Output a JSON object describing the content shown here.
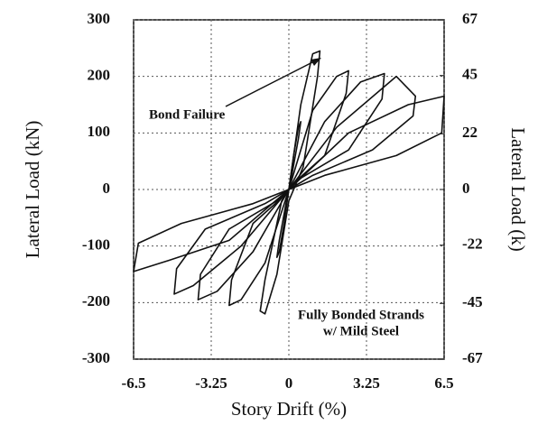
{
  "chart_data": {
    "type": "line",
    "xlabel": "Story Drift (%)",
    "ylabel": "Lateral Load (kN)",
    "y2label": "Lateral Load (k)",
    "annotations": [
      "Bond Failure",
      "Fully Bonded Strands",
      "w/ Mild Steel"
    ],
    "color": "#111111",
    "grid": true,
    "xlim": [
      -6.5,
      6.5
    ],
    "xticks": [
      -6.5,
      -3.25,
      0,
      3.25,
      6.5
    ],
    "ylim": [
      -300,
      300
    ],
    "yticks": [
      -300,
      -200,
      -100,
      0,
      100,
      200,
      300
    ],
    "y2lim": [
      -67,
      67
    ],
    "y2ticks": [
      67,
      45,
      22,
      0,
      -22,
      -45,
      -67
    ],
    "series": [
      {
        "x": [
          0,
          0.2,
          0.4,
          0.5,
          0.4,
          0.1,
          0,
          -0.2,
          -0.4,
          -0.5,
          -0.4,
          -0.1,
          0
        ],
        "values": [
          0,
          60,
          110,
          120,
          90,
          20,
          0,
          -60,
          -110,
          -120,
          -90,
          -20,
          0
        ]
      },
      {
        "x": [
          0,
          0.5,
          1.0,
          1.3,
          1.2,
          0.6,
          0,
          -0.5,
          -1.0,
          -1.2,
          -1.0,
          -0.3,
          0
        ],
        "values": [
          0,
          150,
          240,
          245,
          200,
          40,
          -20,
          -150,
          -220,
          -215,
          -160,
          -20,
          0
        ]
      },
      {
        "x": [
          0,
          1.0,
          2.0,
          2.5,
          2.4,
          1.5,
          0.3,
          0,
          -1.0,
          -2.0,
          -2.5,
          -2.4,
          -1.5,
          -0.3,
          0
        ],
        "values": [
          0,
          140,
          200,
          210,
          170,
          60,
          15,
          0,
          -130,
          -195,
          -205,
          -160,
          -60,
          -15,
          0
        ]
      },
      {
        "x": [
          0,
          1.5,
          3.0,
          4.0,
          3.9,
          2.5,
          0.5,
          0,
          -1.5,
          -3.0,
          -3.8,
          -3.7,
          -2.5,
          -0.5,
          0
        ],
        "values": [
          0,
          120,
          190,
          205,
          160,
          70,
          20,
          0,
          -110,
          -180,
          -195,
          -150,
          -70,
          -20,
          0
        ]
      },
      {
        "x": [
          0,
          2.0,
          4.5,
          5.3,
          5.2,
          3.5,
          1.0,
          0,
          -2.0,
          -4.0,
          -4.8,
          -4.7,
          -3.5,
          -1.0,
          0
        ],
        "values": [
          0,
          110,
          200,
          165,
          130,
          70,
          25,
          0,
          -100,
          -170,
          -185,
          -140,
          -70,
          -25,
          0
        ]
      },
      {
        "x": [
          0,
          2.5,
          5.0,
          6.5,
          6.4,
          4.5,
          1.5,
          0,
          -2.5,
          -5.0,
          -6.5,
          -6.3,
          -4.5,
          -1.5,
          0
        ],
        "values": [
          0,
          100,
          150,
          165,
          100,
          60,
          25,
          0,
          -90,
          -125,
          -145,
          -95,
          -60,
          -25,
          0
        ]
      }
    ]
  }
}
